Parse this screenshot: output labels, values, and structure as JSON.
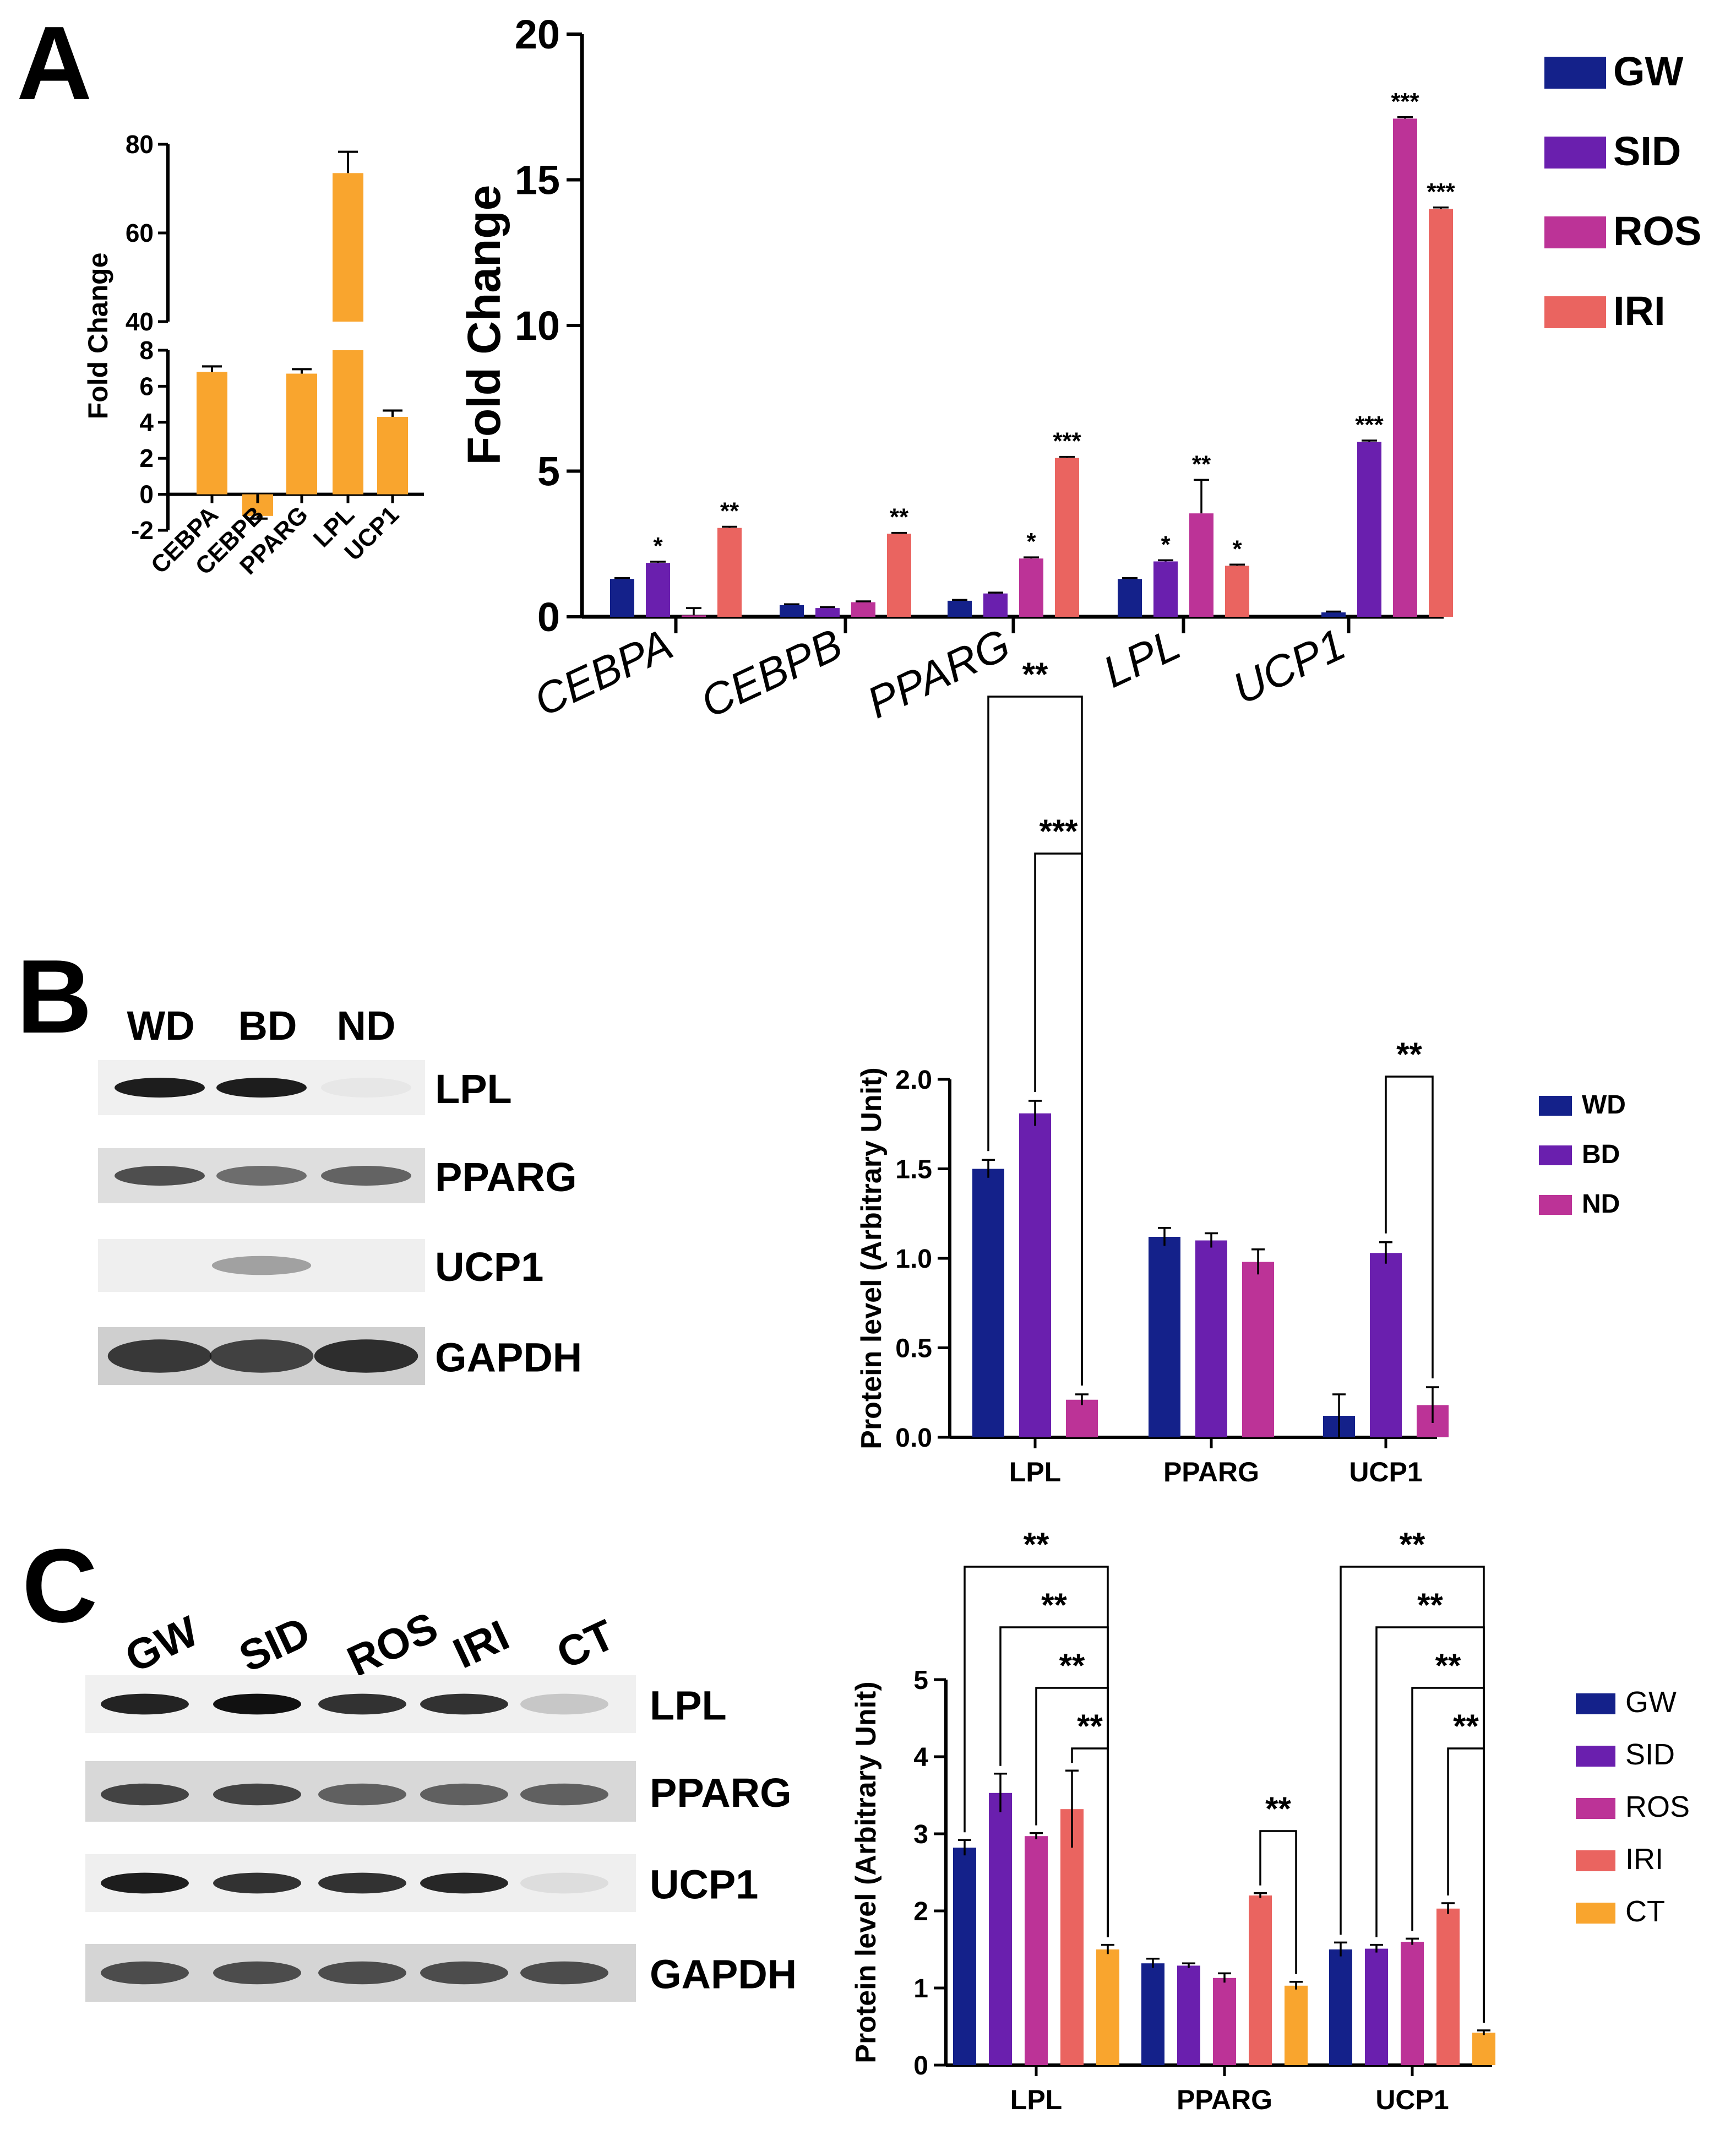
{
  "panels": {
    "A": {
      "letter": "A"
    },
    "B": {
      "letter": "B"
    },
    "C": {
      "letter": "C"
    }
  },
  "colors": {
    "orange": "#F9A52E",
    "GW": "#14218A",
    "SID": "#6A1FAE",
    "ROS": "#BC3397",
    "IRI": "#EA6460",
    "CT": "#F9A52E",
    "WD": "#14218A",
    "BD": "#6A1FAE",
    "ND": "#BC3397"
  },
  "blots": {
    "B": {
      "lanes": [
        "WD",
        "BD",
        "ND"
      ],
      "proteins": [
        "LPL",
        "PPARG",
        "UCP1",
        "GAPDH"
      ]
    },
    "C": {
      "lanes": [
        "GW",
        "SID",
        "ROS",
        "IRI",
        "CT"
      ],
      "proteins": [
        "LPL",
        "PPARG",
        "UCP1",
        "GAPDH"
      ]
    }
  },
  "chart_data": [
    {
      "id": "A-inset",
      "type": "bar",
      "ylabel": "Fold Change",
      "categories": [
        "CEBPA",
        "CEBPB",
        "PPARG",
        "LPL",
        "UCP1"
      ],
      "values": [
        6.8,
        -1.2,
        6.7,
        73.5,
        4.3
      ],
      "errors": [
        0.3,
        0.15,
        0.25,
        4.8,
        0.35
      ],
      "lower_ylim": [
        -2,
        8
      ],
      "lower_ticks": [
        "-2",
        "0",
        "2",
        "4",
        "6",
        "8"
      ],
      "upper_ylim": [
        40,
        80
      ],
      "upper_ticks": [
        "40",
        "60",
        "80"
      ],
      "axis_break": true
    },
    {
      "id": "A-main",
      "type": "bar",
      "ylabel": "Fold Change",
      "categories": [
        "CEBPA",
        "CEBPB",
        "PPARG",
        "LPL",
        "UCP1"
      ],
      "ylim": [
        0,
        20
      ],
      "yticks": [
        "0",
        "5",
        "10",
        "15",
        "20"
      ],
      "series": [
        {
          "name": "GW",
          "values": [
            1.3,
            0.4,
            0.55,
            1.3,
            0.15
          ],
          "errors": [
            0.03,
            0.03,
            0.03,
            0.03,
            0.03
          ],
          "stars": [
            "",
            "",
            "",
            "",
            ""
          ]
        },
        {
          "name": "SID",
          "values": [
            1.85,
            0.3,
            0.8,
            1.9,
            6.0
          ],
          "errors": [
            0.04,
            0.03,
            0.03,
            0.04,
            0.05
          ],
          "stars": [
            "*",
            "",
            "",
            "*",
            "***"
          ]
        },
        {
          "name": "ROS",
          "values": [
            0.05,
            0.5,
            2.0,
            3.55,
            17.1
          ],
          "errors": [
            0.25,
            0.03,
            0.04,
            1.15,
            0.05
          ],
          "stars": [
            "",
            "",
            "*",
            "**",
            "***"
          ]
        },
        {
          "name": "IRI",
          "values": [
            3.05,
            2.85,
            5.45,
            1.75,
            14.0
          ],
          "errors": [
            0.04,
            0.03,
            0.04,
            0.04,
            0.05
          ],
          "stars": [
            "**",
            "**",
            "***",
            "*",
            "***"
          ]
        }
      ]
    },
    {
      "id": "B",
      "type": "bar",
      "ylabel": "Protein level (Arbitrary Unit)",
      "categories": [
        "LPL",
        "PPARG",
        "UCP1"
      ],
      "ylim": [
        0,
        2
      ],
      "yticks": [
        "0.0",
        "0.5",
        "1.0",
        "1.5",
        "2.0"
      ],
      "series": [
        {
          "name": "WD",
          "values": [
            1.5,
            1.12,
            0.12
          ],
          "errors": [
            0.05,
            0.05,
            0.12
          ]
        },
        {
          "name": "BD",
          "values": [
            1.81,
            1.1,
            1.03
          ],
          "errors": [
            0.07,
            0.04,
            0.06
          ]
        },
        {
          "name": "ND",
          "values": [
            0.21,
            0.98,
            0.18
          ],
          "errors": [
            0.03,
            0.07,
            0.1
          ]
        }
      ],
      "brackets": [
        {
          "category": 0,
          "from": 0,
          "to": 2,
          "label": "**",
          "level": 1
        },
        {
          "category": 0,
          "from": 1,
          "to": 2,
          "label": "***",
          "level": 0
        },
        {
          "category": 2,
          "from": 1,
          "to": 2,
          "label": "**",
          "level": 0
        }
      ]
    },
    {
      "id": "C",
      "type": "bar",
      "ylabel": "Protein level (Arbitrary Unit)",
      "categories": [
        "LPL",
        "PPARG",
        "UCP1"
      ],
      "ylim": [
        0,
        5
      ],
      "yticks": [
        "0",
        "1",
        "2",
        "3",
        "4",
        "5"
      ],
      "series": [
        {
          "name": "GW",
          "values": [
            2.82,
            1.32,
            1.5
          ],
          "errors": [
            0.1,
            0.06,
            0.09
          ]
        },
        {
          "name": "SID",
          "values": [
            3.53,
            1.29,
            1.51
          ],
          "errors": [
            0.25,
            0.03,
            0.05
          ]
        },
        {
          "name": "ROS",
          "values": [
            2.97,
            1.13,
            1.6
          ],
          "errors": [
            0.04,
            0.06,
            0.04
          ]
        },
        {
          "name": "IRI",
          "values": [
            3.32,
            2.2,
            2.03
          ],
          "errors": [
            0.5,
            0.03,
            0.07
          ]
        },
        {
          "name": "CT",
          "values": [
            1.5,
            1.03,
            0.42
          ],
          "errors": [
            0.06,
            0.05,
            0.03
          ]
        }
      ],
      "brackets": [
        {
          "category": 0,
          "from": 0,
          "to": 4,
          "label": "**",
          "level": 3
        },
        {
          "category": 0,
          "from": 1,
          "to": 4,
          "label": "**",
          "level": 2
        },
        {
          "category": 0,
          "from": 2,
          "to": 4,
          "label": "**",
          "level": 1
        },
        {
          "category": 0,
          "from": 3,
          "to": 4,
          "label": "**",
          "level": 0
        },
        {
          "category": 1,
          "from": 3,
          "to": 4,
          "label": "**",
          "level": 0
        },
        {
          "category": 2,
          "from": 0,
          "to": 4,
          "label": "**",
          "level": 3
        },
        {
          "category": 2,
          "from": 1,
          "to": 4,
          "label": "**",
          "level": 2
        },
        {
          "category": 2,
          "from": 2,
          "to": 4,
          "label": "**",
          "level": 1
        },
        {
          "category": 2,
          "from": 3,
          "to": 4,
          "label": "**",
          "level": 0
        }
      ]
    }
  ]
}
